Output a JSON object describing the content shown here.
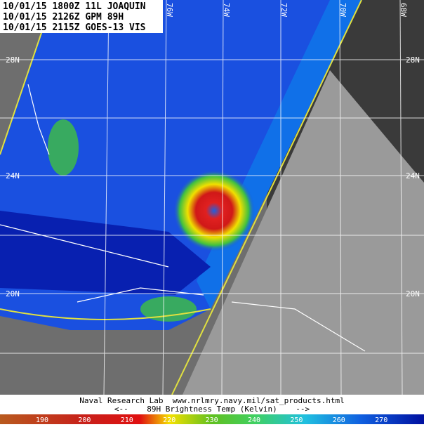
{
  "header": {
    "lines": [
      "10/01/15 1800Z 11L JOAQUIN",
      "10/01/15 2126Z GPM 89H",
      "10/01/15 2115Z GOES-13 VIS"
    ]
  },
  "map": {
    "lat_labels": [
      "28N",
      "24N",
      "20N"
    ],
    "lon_labels": [
      "76W",
      "74W",
      "72W",
      "70W",
      "68W"
    ]
  },
  "footer": {
    "credit": "Naval Research Lab  www.nrlmry.navy.mil/sat_products.html",
    "legend_title": "<--    89H Brightness Temp (Kelvin)    -->"
  },
  "colorbar": {
    "labels": [
      "190",
      "200",
      "210",
      "220",
      "230",
      "240",
      "250",
      "260",
      "270"
    ]
  }
}
